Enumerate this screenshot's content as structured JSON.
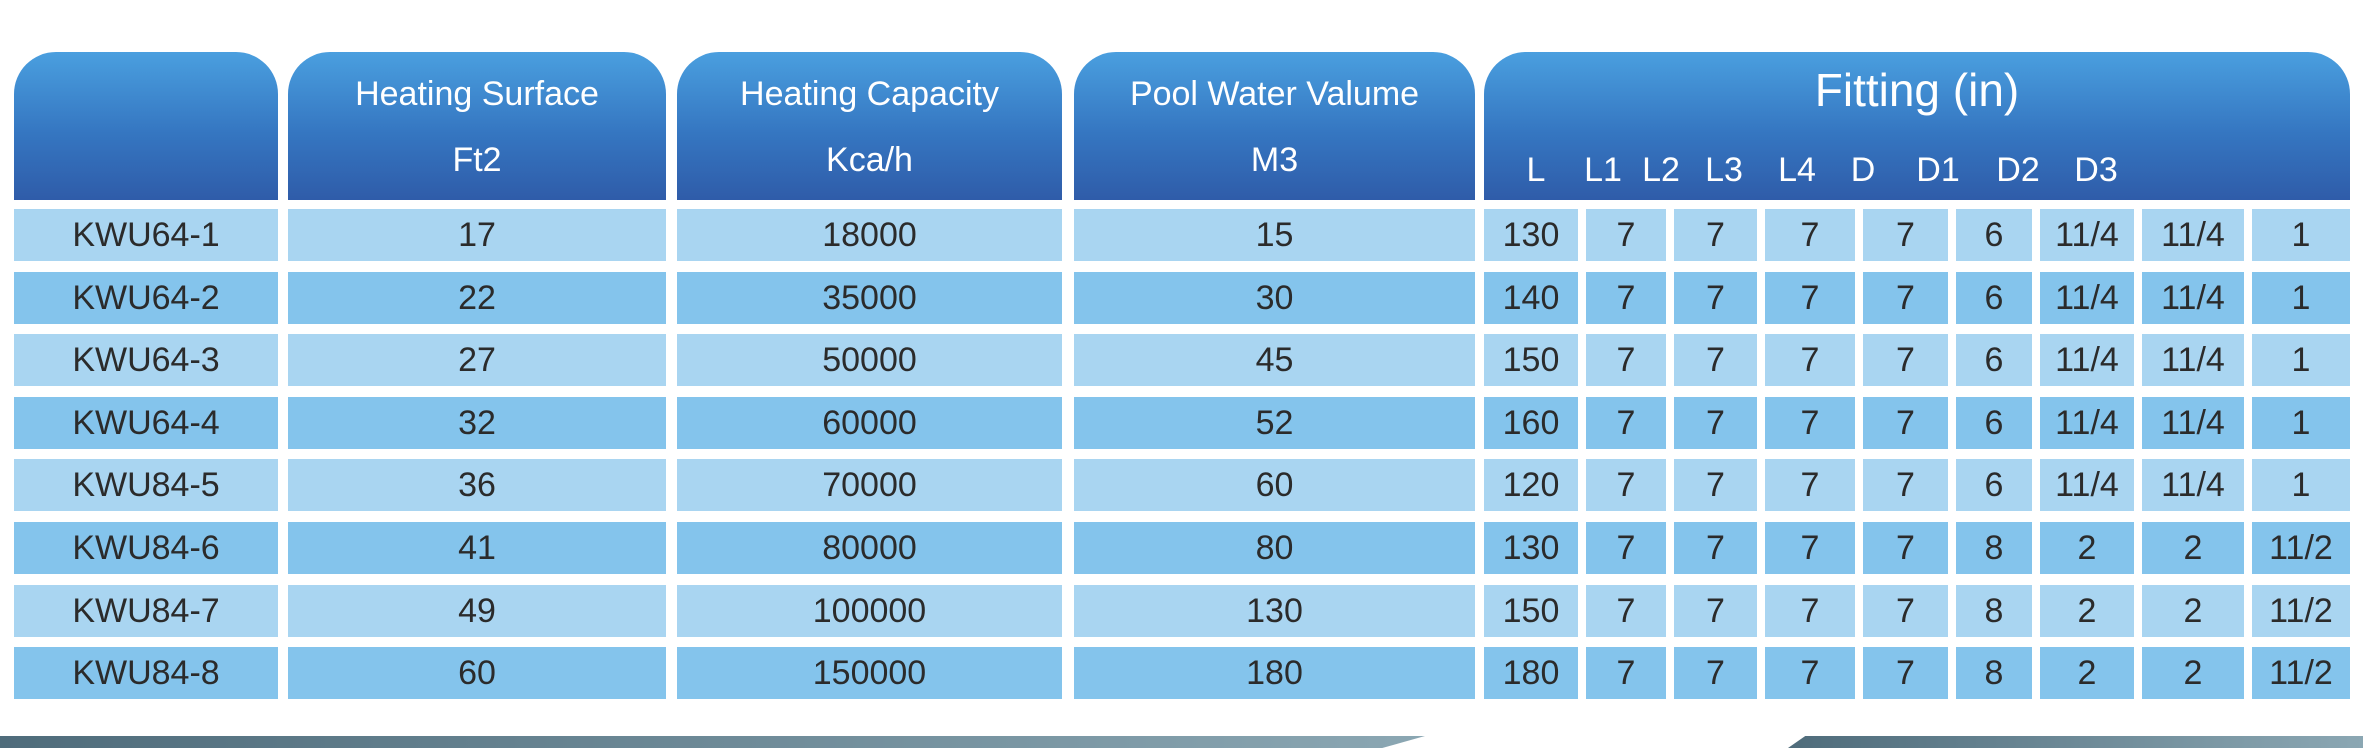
{
  "table": {
    "headers": {
      "model": "",
      "heating_surface": {
        "title": "Heating Surface",
        "unit": "Ft2"
      },
      "heating_capacity": {
        "title": "Heating Capacity",
        "unit": "Kca/h"
      },
      "pool_water_volume": {
        "title": "Pool Water Valume",
        "unit": "M3"
      },
      "fitting": {
        "title": "Fitting (in)",
        "subheaders": [
          "L",
          "L1",
          "L2",
          "L3",
          "L4",
          "D",
          "D1",
          "D2",
          "D3"
        ]
      }
    },
    "rows": [
      {
        "model": "KWU64-1",
        "surface": "17",
        "capacity": "18000",
        "volume": "15",
        "fitting": [
          "130",
          "7",
          "7",
          "7",
          "7",
          "6",
          "11/4",
          "11/4",
          "1"
        ]
      },
      {
        "model": "KWU64-2",
        "surface": "22",
        "capacity": "35000",
        "volume": "30",
        "fitting": [
          "140",
          "7",
          "7",
          "7",
          "7",
          "6",
          "11/4",
          "11/4",
          "1"
        ]
      },
      {
        "model": "KWU64-3",
        "surface": "27",
        "capacity": "50000",
        "volume": "45",
        "fitting": [
          "150",
          "7",
          "7",
          "7",
          "7",
          "6",
          "11/4",
          "11/4",
          "1"
        ]
      },
      {
        "model": "KWU64-4",
        "surface": "32",
        "capacity": "60000",
        "volume": "52",
        "fitting": [
          "160",
          "7",
          "7",
          "7",
          "7",
          "6",
          "11/4",
          "11/4",
          "1"
        ]
      },
      {
        "model": "KWU84-5",
        "surface": "36",
        "capacity": "70000",
        "volume": "60",
        "fitting": [
          "120",
          "7",
          "7",
          "7",
          "7",
          "6",
          "11/4",
          "11/4",
          "1"
        ]
      },
      {
        "model": "KWU84-6",
        "surface": "41",
        "capacity": "80000",
        "volume": "80",
        "fitting": [
          "130",
          "7",
          "7",
          "7",
          "7",
          "8",
          "2",
          "2",
          "11/2"
        ]
      },
      {
        "model": "KWU84-7",
        "surface": "49",
        "capacity": "100000",
        "volume": "130",
        "fitting": [
          "150",
          "7",
          "7",
          "7",
          "7",
          "8",
          "2",
          "2",
          "11/2"
        ]
      },
      {
        "model": "KWU84-8",
        "surface": "60",
        "capacity": "150000",
        "volume": "180",
        "fitting": [
          "180",
          "7",
          "7",
          "7",
          "7",
          "8",
          "2",
          "2",
          "11/2"
        ]
      }
    ]
  },
  "colors": {
    "header_top": "#4a9fdf",
    "header_bottom": "#2f5ca9",
    "row_light": "#a9d5f1",
    "row_dark": "#84c4ec",
    "text": "#2b2b2b"
  }
}
